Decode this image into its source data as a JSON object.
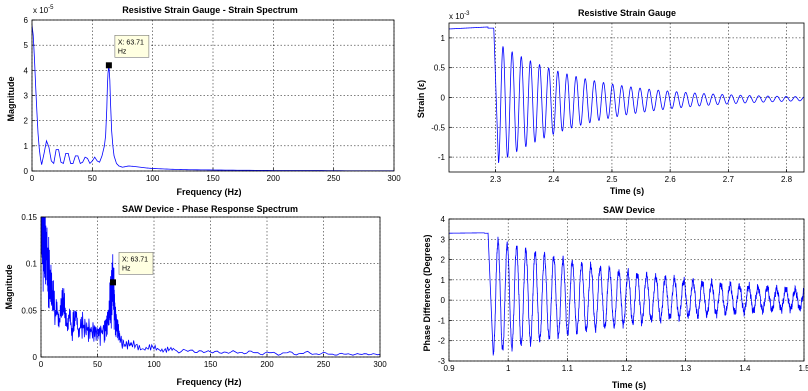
{
  "chart_data": [
    {
      "id": "strain-spectrum",
      "type": "line",
      "title": "Resistive Strain Gauge - Strain Spectrum",
      "xlabel": "Frequency (Hz)",
      "ylabel": "Magnitude",
      "y_exponent": "x 10",
      "y_exponent_power": "-5",
      "xlim": [
        0,
        300
      ],
      "ylim": [
        0,
        6
      ],
      "xticks": [
        0,
        50,
        100,
        150,
        200,
        250,
        300
      ],
      "yticks": [
        0,
        1,
        2,
        3,
        4,
        5,
        6
      ],
      "grid": true,
      "series": [
        {
          "color": "#0000ff",
          "x": [
            0,
            1,
            2,
            3,
            4,
            5,
            6,
            7,
            8,
            10,
            12,
            14,
            16,
            18,
            20,
            22,
            24,
            26,
            28,
            30,
            32,
            34,
            36,
            38,
            40,
            42,
            44,
            46,
            48,
            50,
            52,
            54,
            56,
            58,
            60,
            61,
            62,
            62.5,
            63,
            63.71,
            64.5,
            65,
            66,
            67,
            68,
            70,
            72,
            75,
            80,
            85,
            90,
            95,
            100,
            110,
            120,
            130,
            150,
            170,
            200,
            230,
            260,
            300
          ],
          "y": [
            5.8,
            5.4,
            4.5,
            3.4,
            2.4,
            1.5,
            0.9,
            0.5,
            0.25,
            0.7,
            1.2,
            0.95,
            0.4,
            0.3,
            0.85,
            0.85,
            0.35,
            0.3,
            0.7,
            0.7,
            0.3,
            0.3,
            0.6,
            0.6,
            0.3,
            0.35,
            0.55,
            0.5,
            0.3,
            0.4,
            0.55,
            0.4,
            0.35,
            0.6,
            1.0,
            1.4,
            2.5,
            3.4,
            3.9,
            4.2,
            3.6,
            2.8,
            1.6,
            1.0,
            0.6,
            0.3,
            0.2,
            0.15,
            0.2,
            0.18,
            0.15,
            0.12,
            0.1,
            0.08,
            0.06,
            0.05,
            0.04,
            0.03,
            0.02,
            0.02,
            0.01,
            0.01
          ]
        }
      ],
      "datatip": {
        "x": 63.71,
        "y": 4.2,
        "line1": "X: 63.71",
        "line2": "Hz"
      }
    },
    {
      "id": "strain-time",
      "type": "line",
      "title": "Resistive Strain Gauge",
      "xlabel": "Time (s)",
      "ylabel": "Strain (ε)",
      "y_exponent": "x 10",
      "y_exponent_power": "-3",
      "xlim": [
        2.22,
        2.83
      ],
      "ylim": [
        -1.25,
        1.25
      ],
      "xticks": [
        2.3,
        2.4,
        2.5,
        2.6,
        2.7,
        2.8
      ],
      "yticks": [
        -1,
        -0.5,
        0,
        0.5,
        1
      ],
      "grid": true,
      "signal": {
        "pre_level": 1.15,
        "pre_slope": 0.5,
        "t_jump": 2.297,
        "t_peak": 2.287,
        "t_start": 2.305,
        "amp0": 1.0,
        "freq_hz": 63.71,
        "decay": 6.5,
        "offset_start": -0.1,
        "noise": 0
      }
    },
    {
      "id": "saw-spectrum",
      "type": "line",
      "title": "SAW Device - Phase Response Spectrum",
      "xlabel": "Frequency (Hz)",
      "ylabel": "Magnitude",
      "xlim": [
        0,
        300
      ],
      "ylim": [
        0,
        0.15
      ],
      "xticks": [
        0,
        50,
        100,
        150,
        200,
        250,
        300
      ],
      "yticks": [
        0,
        0.05,
        0.1,
        0.15
      ],
      "grid": true,
      "series": [
        {
          "color": "#0000ff",
          "x": [
            0,
            1,
            2,
            3,
            4,
            5,
            6,
            8,
            10,
            12,
            15,
            18,
            20,
            22,
            25,
            28,
            30,
            33,
            36,
            40,
            44,
            48,
            52,
            56,
            58,
            60,
            61,
            62,
            63,
            63.71,
            64.5,
            65,
            66,
            68,
            70,
            75,
            80,
            90,
            100,
            110,
            120,
            140,
            160,
            180,
            200,
            220,
            240,
            260,
            280,
            300
          ],
          "y": [
            0.15,
            0.15,
            0.13,
            0.15,
            0.11,
            0.12,
            0.09,
            0.08,
            0.065,
            0.06,
            0.045,
            0.05,
            0.06,
            0.04,
            0.045,
            0.035,
            0.04,
            0.03,
            0.035,
            0.03,
            0.028,
            0.027,
            0.026,
            0.03,
            0.035,
            0.045,
            0.055,
            0.065,
            0.075,
            0.08,
            0.07,
            0.055,
            0.04,
            0.03,
            0.02,
            0.015,
            0.012,
            0.01,
            0.009,
            0.008,
            0.007,
            0.006,
            0.005,
            0.005,
            0.004,
            0.004,
            0.004,
            0.003,
            0.003,
            0.003
          ]
        }
      ],
      "datatip": {
        "x": 63.71,
        "y": 0.08,
        "line1": "X: 63.71",
        "line2": "Hz"
      }
    },
    {
      "id": "saw-time",
      "type": "line",
      "title": "SAW Device",
      "xlabel": "Time (s)",
      "ylabel": "Phase Difference (Degrees)",
      "xlim": [
        0.9,
        1.5
      ],
      "ylim": [
        -3,
        4
      ],
      "xticks": [
        0.9,
        1,
        1.1,
        1.2,
        1.3,
        1.4,
        1.5
      ],
      "yticks": [
        -3,
        -2,
        -1,
        0,
        1,
        2,
        3,
        4
      ],
      "grid": true,
      "signal": {
        "pre_level": 3.3,
        "pre_slope": 0.3,
        "t_jump": 0.966,
        "t_peak": 0.96,
        "t_start": 0.975,
        "amp0": 2.8,
        "freq_hz": 63.71,
        "decay": 3.5,
        "offset_start": 0.2,
        "noise": 0.18
      }
    }
  ]
}
